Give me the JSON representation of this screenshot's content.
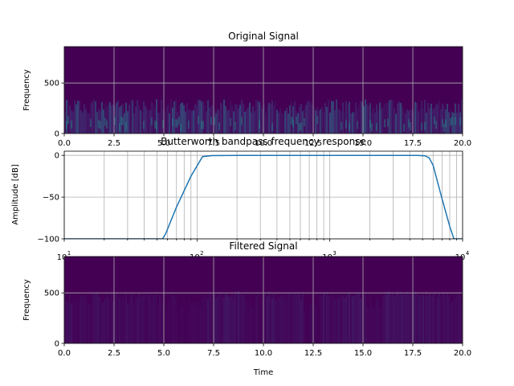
{
  "figure": {
    "background": "#ffffff"
  },
  "chart_data": [
    {
      "type": "heatmap",
      "title": "Original Signal",
      "xlabel": "",
      "ylabel": "Frequency",
      "xlim": [
        0,
        20
      ],
      "ylim": [
        0,
        860
      ],
      "xticks": [
        0,
        2.5,
        5,
        7.5,
        10,
        12.5,
        15,
        17.5,
        20
      ],
      "xticklabels": [
        "0.0",
        "2.5",
        "5.0",
        "7.5",
        "10.0",
        "12.5",
        "15.0",
        "17.5",
        "20.0"
      ],
      "yticks": [
        0,
        500
      ],
      "yticklabels": [
        "0",
        "500"
      ],
      "grid": true,
      "colormap": "viridis",
      "background_color": "#440154",
      "energy_band": [
        0,
        340
      ],
      "energy_profile": "broadband noise, uniform over time"
    },
    {
      "type": "line",
      "title": "Butterworth bandpass frequency response",
      "xlabel": "",
      "ylabel": "Amplitude [dB]",
      "xscale": "log",
      "xlim": [
        10,
        10000
      ],
      "ylim": [
        -100,
        5
      ],
      "xticks": [
        10,
        100,
        1000,
        10000
      ],
      "xticklabels": [
        "10",
        "10",
        "10",
        "10"
      ],
      "xtick_exponents": [
        "1",
        "2",
        "3",
        "4"
      ],
      "yticks": [
        0,
        -50,
        -100
      ],
      "yticklabels": [
        "0",
        "−50",
        "−100"
      ],
      "grid": true,
      "color": "#1f77b4",
      "series": [
        {
          "x": [
            10,
            30,
            55,
            58,
            70,
            90,
            110,
            130,
            200,
            500,
            1000,
            2000,
            3000,
            4500,
            5200,
            5600,
            6000,
            7000,
            8000,
            8600,
            10000
          ],
          "y": [
            -100,
            -100,
            -100,
            -94,
            -62,
            -25,
            -1.5,
            -0.3,
            0,
            0,
            0,
            0,
            0,
            0,
            -0.5,
            -3,
            -12,
            -52,
            -85,
            -100,
            -100
          ]
        }
      ]
    },
    {
      "type": "heatmap",
      "title": "Filtered Signal",
      "xlabel": "Time",
      "ylabel": "Frequency",
      "xlim": [
        0,
        20
      ],
      "ylim": [
        0,
        860
      ],
      "xticks": [
        0,
        2.5,
        5,
        7.5,
        10,
        12.5,
        15,
        17.5,
        20
      ],
      "xticklabels": [
        "0.0",
        "2.5",
        "5.0",
        "7.5",
        "10.0",
        "12.5",
        "15.0",
        "17.5",
        "20.0"
      ],
      "yticks": [
        0,
        500
      ],
      "yticklabels": [
        "0",
        "500"
      ],
      "grid": true,
      "colormap": "viridis",
      "background_color": "#440154",
      "energy_band": [
        0,
        520
      ],
      "energy_profile": "faint band-limited energy, stronger at 0-5, 7-9, 10-12, 13-15, 16-19"
    }
  ]
}
